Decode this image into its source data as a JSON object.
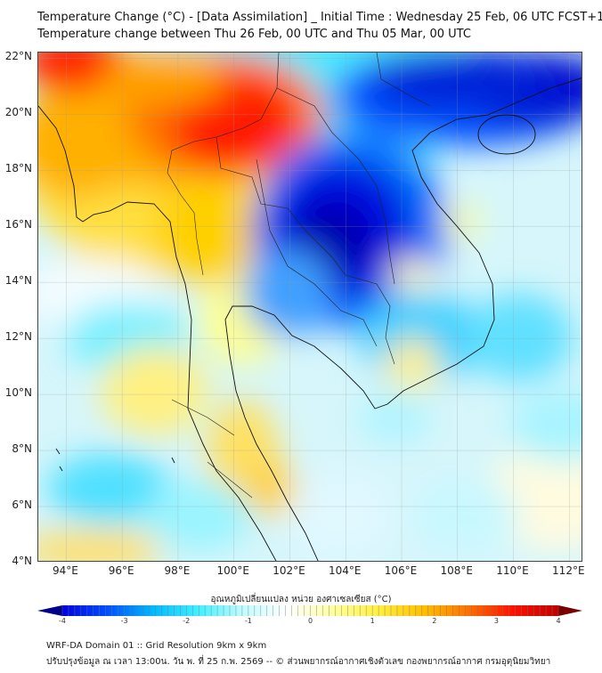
{
  "header": {
    "title_line1": "Temperature Change (°C) - [Data Assimilation] _ Initial Time : Wednesday 25 Feb, 06 UTC FCST+168",
    "title_line2": "Temperature change between Thu 26 Feb, 00 UTC and Thu 05 Mar, 00 UTC"
  },
  "map": {
    "lon_range": [
      93.0,
      112.5
    ],
    "lat_range": [
      4.0,
      22.2
    ],
    "lat_labels": [
      "22°N",
      "20°N",
      "18°N",
      "16°N",
      "14°N",
      "12°N",
      "10°N",
      "8°N",
      "6°N",
      "4°N"
    ],
    "lon_labels": [
      "94°E",
      "96°E",
      "98°E",
      "100°E",
      "102°E",
      "104°E",
      "106°E",
      "108°E",
      "110°E",
      "112°E"
    ]
  },
  "colorbar": {
    "title": "อุณหภูมิเปลี่ยนแปลง หน่วย องศาเซลเซียส (°C)",
    "ticks": [
      "-4",
      "-3",
      "-2",
      "-1",
      "0",
      "1",
      "2",
      "3",
      "4"
    ],
    "range": [
      -4,
      4
    ],
    "colors": [
      "#00008a",
      "#0000e0",
      "#0050ff",
      "#00b8ff",
      "#40f0ff",
      "#c0fcff",
      "#ffffff",
      "#ffffa0",
      "#fff040",
      "#ffc000",
      "#ff7000",
      "#ff1000",
      "#c00000",
      "#7a0000"
    ]
  },
  "footer": {
    "line1": "WRF-DA Domain 01 :: Grid Resolution 9km x 9km",
    "line2": "ปรับปรุงข้อมูล ณ เวลา 13:00น. วัน พ. ที่ 25 ก.พ. 2569 -- © ส่วนพยากรณ์อากาศเชิงตัวเลข กองพยากรณ์อากาศ กรมอุตุนิยมวิทยา"
  }
}
